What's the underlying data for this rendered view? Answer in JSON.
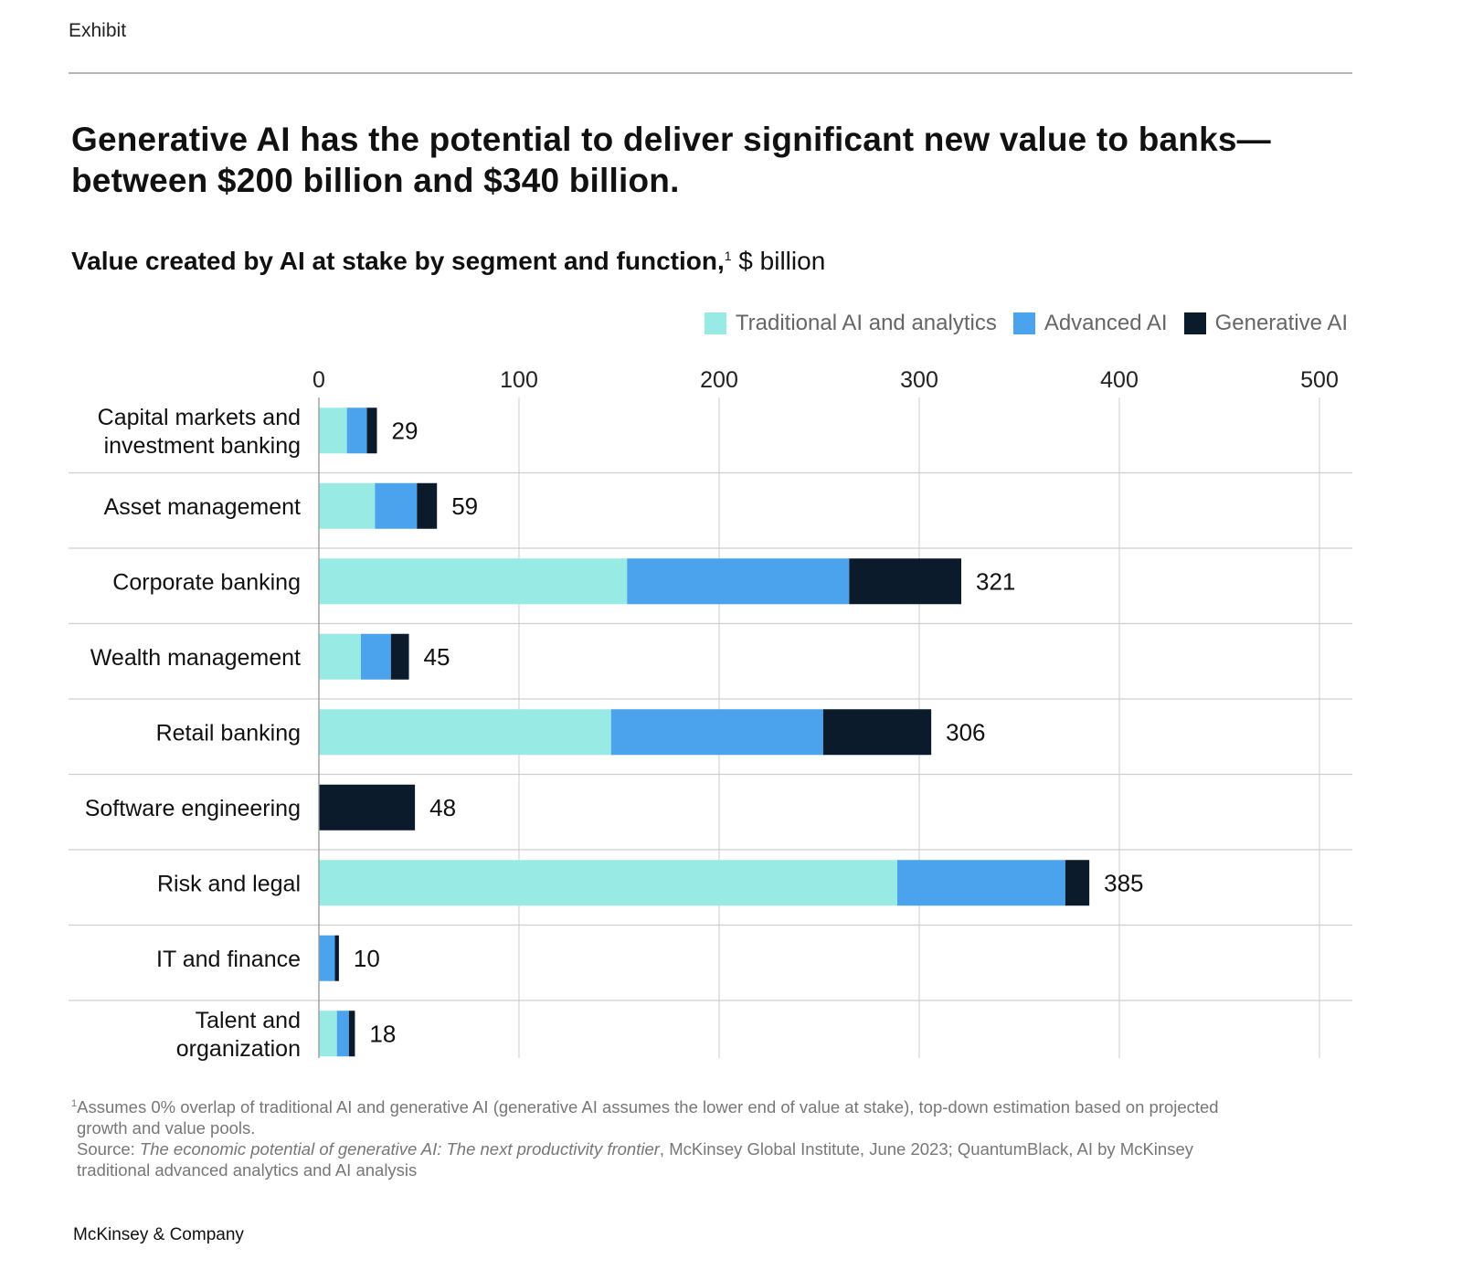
{
  "header": {
    "exhibit": "Exhibit",
    "title_line1": "Generative AI has the potential to deliver significant new value to banks—",
    "title_line2": "between $200 billion and $340 billion.",
    "subtitle_bold": "Value created by AI at stake by segment and function,",
    "subtitle_sup": "1",
    "subtitle_unit": " $ billion"
  },
  "colors": {
    "traditional": "#98ebe4",
    "advanced": "#4aa3ec",
    "generative": "#0c1b2c",
    "grid": "#d4d4d4",
    "divider": "#cfcfcf"
  },
  "chart_data": {
    "type": "bar",
    "orientation": "horizontal",
    "stacked": true,
    "xlim": [
      0,
      500
    ],
    "ticks": [
      "0",
      "100",
      "200",
      "300",
      "400",
      "500"
    ],
    "tick_values": [
      0,
      100,
      200,
      300,
      400,
      500
    ],
    "legend": [
      "Traditional AI and analytics",
      "Advanced AI",
      "Generative  AI"
    ],
    "categories": [
      [
        "Capital markets and",
        "investment banking"
      ],
      [
        "Asset management"
      ],
      [
        "Corporate banking"
      ],
      [
        "Wealth management"
      ],
      [
        "Retail banking"
      ],
      [
        "Software engineering"
      ],
      [
        "Risk and legal"
      ],
      [
        "IT and finance"
      ],
      [
        "Talent and",
        "organization"
      ]
    ],
    "series": [
      {
        "name": "Traditional AI and analytics",
        "values": [
          14,
          28,
          154,
          21,
          146,
          0,
          289,
          0,
          9
        ]
      },
      {
        "name": "Advanced AI",
        "values": [
          10,
          21,
          111,
          15,
          106,
          0,
          84,
          8,
          6
        ]
      },
      {
        "name": "Generative  AI",
        "values": [
          5,
          10,
          56,
          9,
          54,
          48,
          12,
          2,
          3
        ]
      }
    ],
    "totals": [
      "29",
      "59",
      "321",
      "45",
      "306",
      "48",
      "385",
      "10",
      "18"
    ]
  },
  "footnotes": {
    "sup": "1",
    "note_line1": "Assumes 0% overlap of traditional AI and generative AI (generative AI assumes the lower end of value at stake), top-down estimation based on projected",
    "note_line2": "growth and value pools.",
    "source_label": "Source: ",
    "source_title": "The economic potential of generative AI: The next productivity frontier",
    "source_rest": ", McKinsey Global Institute, June 2023; QuantumBlack, AI by McKinsey",
    "source_line2": "traditional advanced analytics and AI analysis"
  },
  "brand": "McKinsey & Company"
}
